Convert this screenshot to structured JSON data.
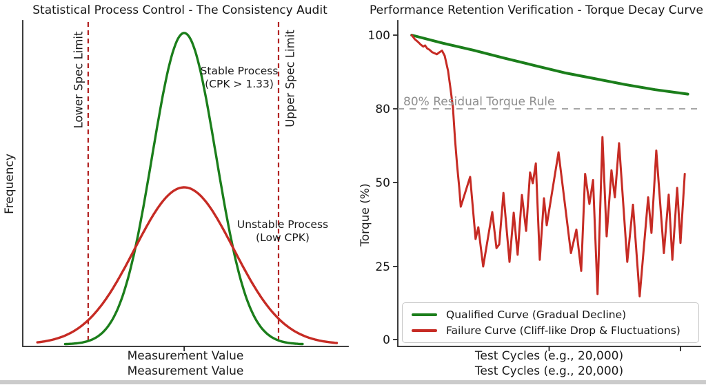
{
  "page": {
    "background_color": "#ffffff",
    "bottom_strip_color": "#cbcbcb",
    "spine_color": "#262626"
  },
  "chart_data": [
    {
      "type": "line",
      "title": "Statistical Process Control - The Consistency Audit",
      "xlabel": "Measurement Value",
      "xlabel_repeated": "Measurement Value",
      "ylabel": "Frequency",
      "grid": false,
      "x_axis_ticks": [
        0.496
      ],
      "curves": [
        {
          "name": "Stable Process (CPK > 1.33)",
          "shape": "gaussian",
          "color": "#1b7e1b",
          "center": 0.496,
          "sigma": 0.098,
          "peak_height_frac": 0.956,
          "x_range": [
            0.13,
            0.86
          ]
        },
        {
          "name": "Unstable Process (Low CPK)",
          "shape": "gaussian",
          "color": "#c62b24",
          "center": 0.496,
          "sigma": 0.1525,
          "peak_height_frac": 0.482,
          "x_range": [
            0.045,
            0.965
          ]
        }
      ],
      "spec_limits": [
        {
          "label": "Lower Spec Limit",
          "x": 0.201,
          "color": "#b22222",
          "style": "dashed"
        },
        {
          "label": "Upper Spec Limit",
          "x": 0.786,
          "color": "#b22222",
          "style": "dashed"
        }
      ],
      "annotations": [
        {
          "line1": "Stable Process",
          "line2": "(CPK > 1.33)"
        },
        {
          "line1": "Unstable Process",
          "line2": "(Low CPK)"
        }
      ]
    },
    {
      "type": "line",
      "title": "Performance Retention Verification - Torque Decay Curve",
      "xlabel": "Test Cycles (e.g., 20,000)",
      "xlabel_repeated": "Test Cycles (e.g., 20,000)",
      "ylabel": "Torque (%)",
      "ylim": [
        0,
        105
      ],
      "yticks": [
        0,
        25,
        50,
        80,
        100
      ],
      "x_axis_ticks": [
        0.5,
        0.934
      ],
      "grid": false,
      "legend_position": "lower left",
      "threshold": {
        "value": 80,
        "label": "80% Residual Torque Rule",
        "line_color": "#a6a6a6",
        "text_color": "#8f8f8f",
        "style": "dashed"
      },
      "series": [
        {
          "name": "Qualified Curve (Gradual Decline)",
          "color": "#1b7e1b",
          "points": [
            [
              0.046,
              100
            ],
            [
              0.15,
              97.8
            ],
            [
              0.25,
              95.9
            ],
            [
              0.35,
              93.8
            ],
            [
              0.45,
              91.8
            ],
            [
              0.55,
              89.8
            ],
            [
              0.65,
              88.2
            ],
            [
              0.75,
              86.6
            ],
            [
              0.85,
              85.2
            ],
            [
              0.958,
              84.0
            ]
          ]
        },
        {
          "name": "Failure Curve (Cliff-like Drop & Fluctuations)",
          "color": "#c62b24",
          "points": [
            [
              0.046,
              100
            ],
            [
              0.056,
              98.9
            ],
            [
              0.066,
              98.2
            ],
            [
              0.076,
              97.4
            ],
            [
              0.084,
              96.9
            ],
            [
              0.09,
              97.2
            ],
            [
              0.097,
              96.4
            ],
            [
              0.105,
              96.0
            ],
            [
              0.113,
              95.4
            ],
            [
              0.121,
              95.1
            ],
            [
              0.129,
              94.8
            ],
            [
              0.137,
              95.3
            ],
            [
              0.146,
              95.8
            ],
            [
              0.155,
              94.4
            ],
            [
              0.166,
              90.3
            ],
            [
              0.173,
              86.2
            ],
            [
              0.182,
              80.5
            ],
            [
              0.189,
              67.5
            ],
            [
              0.196,
              57.0
            ],
            [
              0.203,
              48.5
            ],
            [
              0.208,
              42.8
            ],
            [
              0.239,
              52.3
            ],
            [
              0.257,
              33.2
            ],
            [
              0.266,
              36.7
            ],
            [
              0.282,
              25.0
            ],
            [
              0.312,
              41.2
            ],
            [
              0.326,
              30.5
            ],
            [
              0.335,
              31.6
            ],
            [
              0.349,
              46.9
            ],
            [
              0.369,
              26.4
            ],
            [
              0.383,
              41.0
            ],
            [
              0.396,
              28.5
            ],
            [
              0.41,
              46.3
            ],
            [
              0.424,
              35.6
            ],
            [
              0.437,
              54.1
            ],
            [
              0.446,
              49.8
            ],
            [
              0.456,
              57.8
            ],
            [
              0.469,
              27.0
            ],
            [
              0.483,
              45.3
            ],
            [
              0.492,
              37.3
            ],
            [
              0.531,
              62.3
            ],
            [
              0.572,
              29.0
            ],
            [
              0.59,
              36.0
            ],
            [
              0.606,
              23.5
            ],
            [
              0.619,
              53.5
            ],
            [
              0.633,
              43.6
            ],
            [
              0.645,
              51.0
            ],
            [
              0.66,
              15.6
            ],
            [
              0.676,
              68.5
            ],
            [
              0.69,
              34.0
            ],
            [
              0.706,
              55.0
            ],
            [
              0.717,
              45.6
            ],
            [
              0.731,
              66.0
            ],
            [
              0.758,
              26.4
            ],
            [
              0.777,
              43.4
            ],
            [
              0.799,
              14.8
            ],
            [
              0.827,
              45.6
            ],
            [
              0.838,
              35.0
            ],
            [
              0.854,
              63.0
            ],
            [
              0.879,
              29.0
            ],
            [
              0.895,
              46.4
            ],
            [
              0.907,
              27.0
            ],
            [
              0.923,
              48.4
            ],
            [
              0.934,
              32.0
            ],
            [
              0.948,
              53.5
            ]
          ]
        }
      ]
    }
  ]
}
